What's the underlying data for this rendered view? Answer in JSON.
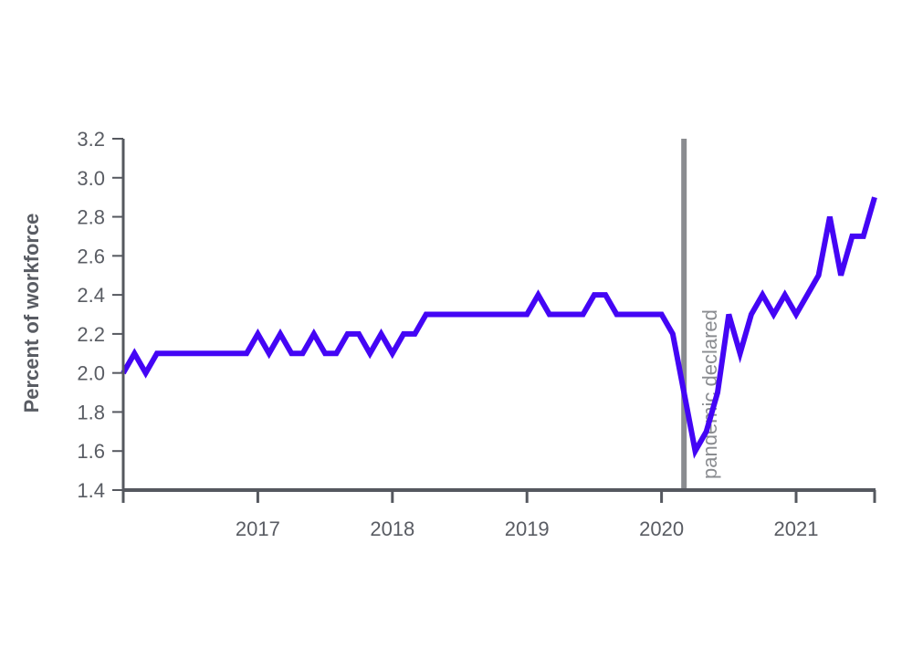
{
  "chart_data": {
    "type": "line",
    "title": "",
    "xlabel": "",
    "ylabel": "Percent of workforce",
    "ylim": [
      1.4,
      3.2
    ],
    "xlim": [
      "2016-01",
      "2021-08"
    ],
    "y_ticks": [
      "1.4",
      "1.6",
      "1.8",
      "2.0",
      "2.2",
      "2.4",
      "2.6",
      "2.8",
      "3.0",
      "3.2"
    ],
    "x_ticks": [
      "2017",
      "2018",
      "2019",
      "2020",
      "2021"
    ],
    "grid": false,
    "legend": "none",
    "colors": {
      "series": "#4405f5",
      "axis": "#55585f",
      "annotation_line": "#8a8c90",
      "annotation_text": "#8a8c90"
    },
    "annotation": {
      "label": "pandemic declared",
      "date": "2020-03"
    },
    "series": [
      {
        "x": [
          "2016-01",
          "2016-02",
          "2016-03",
          "2016-04",
          "2016-05",
          "2016-06",
          "2016-07",
          "2016-08",
          "2016-09",
          "2016-10",
          "2016-11",
          "2016-12",
          "2017-01",
          "2017-02",
          "2017-03",
          "2017-04",
          "2017-05",
          "2017-06",
          "2017-07",
          "2017-08",
          "2017-09",
          "2017-10",
          "2017-11",
          "2017-12",
          "2018-01",
          "2018-02",
          "2018-03",
          "2018-04",
          "2018-05",
          "2018-06",
          "2018-07",
          "2018-08",
          "2018-09",
          "2018-10",
          "2018-11",
          "2018-12",
          "2019-01",
          "2019-02",
          "2019-03",
          "2019-04",
          "2019-05",
          "2019-06",
          "2019-07",
          "2019-08",
          "2019-09",
          "2019-10",
          "2019-11",
          "2019-12",
          "2020-01",
          "2020-02",
          "2020-03",
          "2020-04",
          "2020-05",
          "2020-06",
          "2020-07",
          "2020-08",
          "2020-09",
          "2020-10",
          "2020-11",
          "2020-12",
          "2021-01",
          "2021-02",
          "2021-03",
          "2021-04",
          "2021-05",
          "2021-06",
          "2021-07",
          "2021-08"
        ],
        "values": [
          2.0,
          2.1,
          2.0,
          2.1,
          2.1,
          2.1,
          2.1,
          2.1,
          2.1,
          2.1,
          2.1,
          2.1,
          2.2,
          2.1,
          2.2,
          2.1,
          2.1,
          2.2,
          2.1,
          2.1,
          2.2,
          2.2,
          2.1,
          2.2,
          2.1,
          2.2,
          2.2,
          2.3,
          2.3,
          2.3,
          2.3,
          2.3,
          2.3,
          2.3,
          2.3,
          2.3,
          2.3,
          2.4,
          2.3,
          2.3,
          2.3,
          2.3,
          2.4,
          2.4,
          2.3,
          2.3,
          2.3,
          2.3,
          2.3,
          2.2,
          1.9,
          1.6,
          1.7,
          1.9,
          2.3,
          2.1,
          2.3,
          2.4,
          2.3,
          2.4,
          2.3,
          2.4,
          2.5,
          2.8,
          2.5,
          2.7,
          2.7,
          2.9
        ]
      }
    ]
  }
}
